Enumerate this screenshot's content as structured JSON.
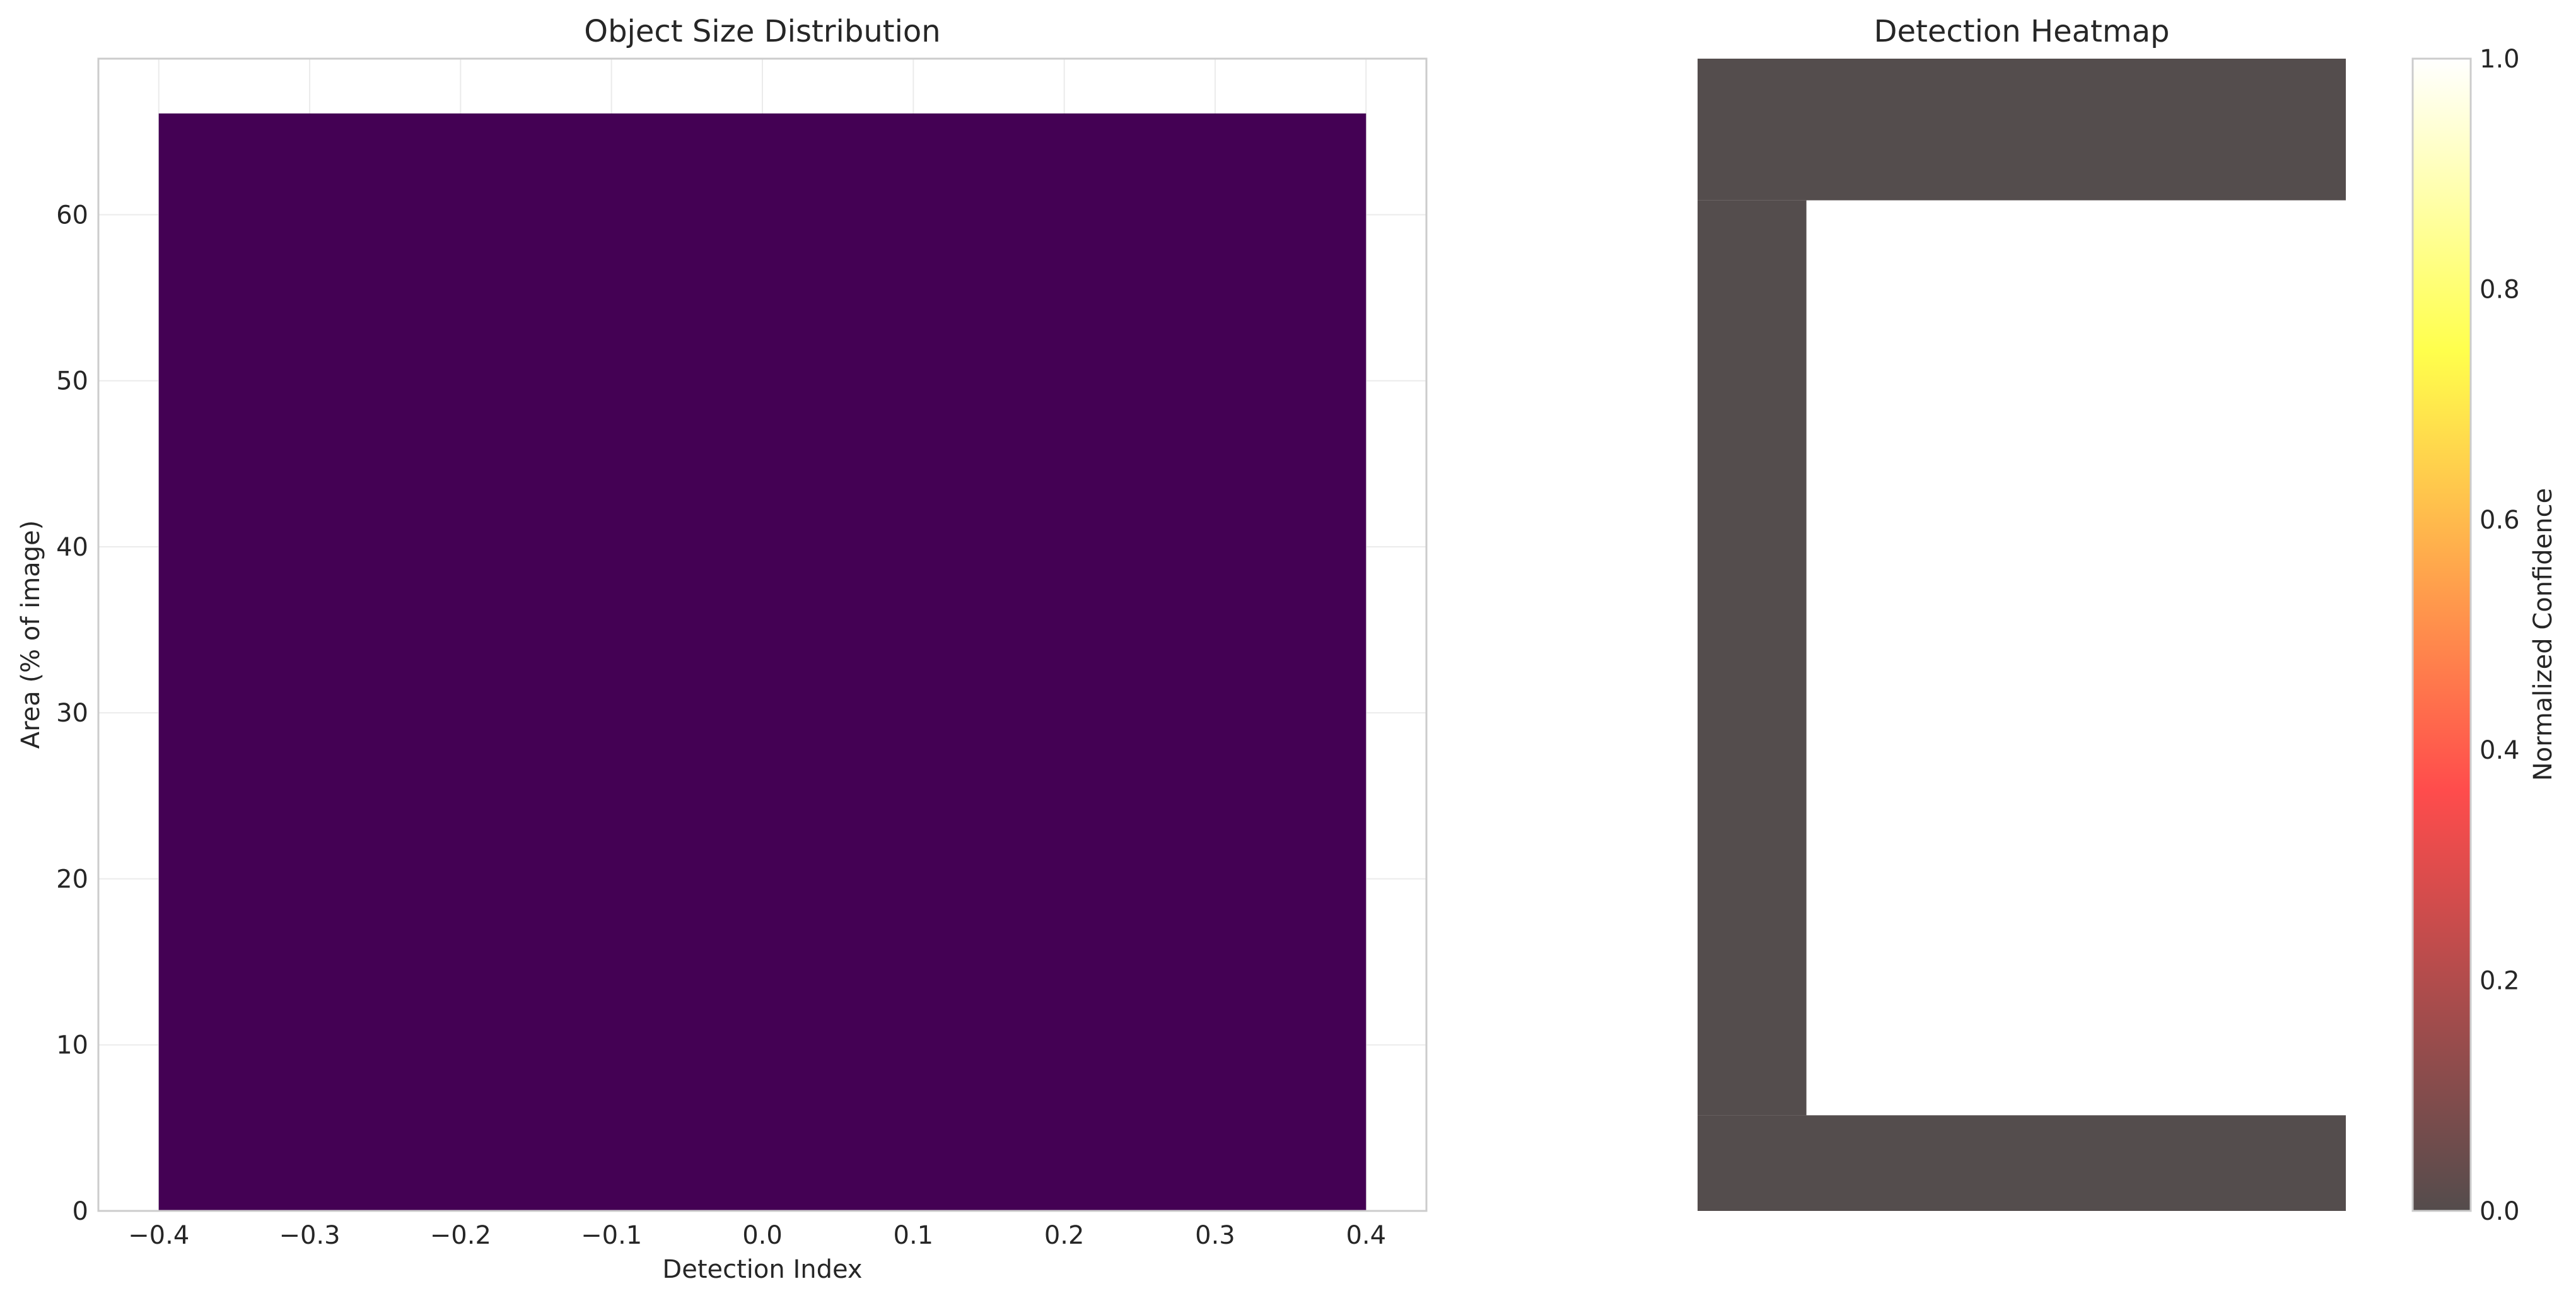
{
  "chart_data": [
    {
      "type": "bar",
      "title": "Object Size Distribution",
      "xlabel": "Detection Index",
      "ylabel": "Area (% of image)",
      "x": [
        0
      ],
      "values": [
        66.1
      ],
      "bar_width": 0.8,
      "bar_color": "#440154",
      "xlim": [
        -0.44,
        0.44
      ],
      "ylim": [
        0,
        69.4
      ],
      "xticks": [
        -0.4,
        -0.3,
        -0.2,
        -0.1,
        0.0,
        0.1,
        0.2,
        0.3,
        0.4
      ],
      "xtick_labels": [
        "−0.4",
        "−0.3",
        "−0.2",
        "−0.1",
        "0.0",
        "0.1",
        "0.2",
        "0.3",
        "0.4"
      ],
      "yticks": [
        0,
        10,
        20,
        30,
        40,
        50,
        60
      ],
      "ytick_labels": [
        "0",
        "10",
        "20",
        "30",
        "40",
        "50",
        "60"
      ],
      "grid": true
    },
    {
      "type": "heatmap",
      "title": "Detection Heatmap",
      "colormap": "hot",
      "alpha": 0.7,
      "vmin": 0.0,
      "vmax": 1.0,
      "xlim": [
        0,
        1
      ],
      "ylim": [
        0,
        1
      ],
      "cells": [
        {
          "x": [
            0,
            1
          ],
          "y": [
            0.877,
            1.0
          ],
          "value": 0.0
        },
        {
          "x": [
            0,
            0.168
          ],
          "y": [
            0.083,
            0.877
          ],
          "value": 0.0
        },
        {
          "x": [
            0.168,
            1
          ],
          "y": [
            0.083,
            0.877
          ],
          "value": 1.0
        },
        {
          "x": [
            0,
            1
          ],
          "y": [
            0,
            0.083
          ],
          "value": 0.0
        }
      ],
      "colorbar": {
        "label": "Normalized Confidence",
        "ticks": [
          0.0,
          0.2,
          0.4,
          0.6,
          0.8,
          1.0
        ],
        "tick_labels": [
          "0.0",
          "0.2",
          "0.4",
          "0.6",
          "0.8",
          "1.0"
        ]
      }
    }
  ]
}
